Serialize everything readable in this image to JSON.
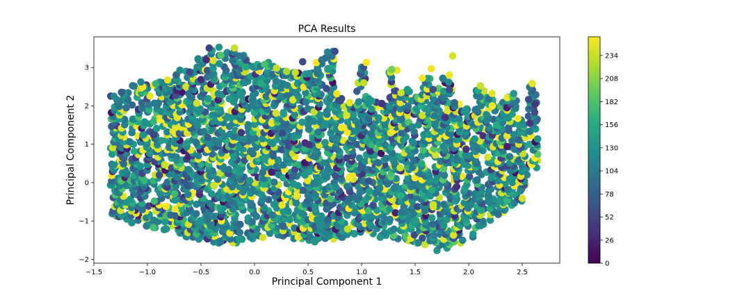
{
  "chart_data": {
    "type": "scatter",
    "title": "PCA Results",
    "xlabel": "Principal Component 1",
    "ylabel": "Principal Component 2",
    "xlim": [
      -1.5,
      2.85
    ],
    "ylim": [
      -2.1,
      3.8
    ],
    "xticks": [
      -1.5,
      -1.0,
      -0.5,
      0.0,
      0.5,
      1.0,
      1.5,
      2.0,
      2.5
    ],
    "xtick_labels": [
      "−1.5",
      "−1.0",
      "−0.5",
      "0.0",
      "0.5",
      "1.0",
      "1.5",
      "2.0",
      "2.5"
    ],
    "yticks": [
      -2,
      -1,
      0,
      1,
      2,
      3
    ],
    "ytick_labels": [
      "−2",
      "−1",
      "0",
      "1",
      "2",
      "3"
    ],
    "grid": false,
    "colorbar": {
      "colormap": "viridis",
      "range": [
        0,
        255
      ],
      "ticks": [
        0,
        26,
        52,
        78,
        104,
        130,
        156,
        182,
        208,
        234
      ],
      "tick_labels": [
        "0",
        "26",
        "52",
        "78",
        "104",
        "130",
        "156",
        "182",
        "208",
        "234"
      ]
    },
    "columns": [
      {
        "x": -1.3,
        "ymin": -0.9,
        "ymax": 2.25
      },
      {
        "x": -1.22,
        "ymin": -0.95,
        "ymax": 2.35
      },
      {
        "x": -1.12,
        "ymin": -1.05,
        "ymax": 2.5
      },
      {
        "x": -1.02,
        "ymin": -1.1,
        "ymax": 2.6
      },
      {
        "x": -0.9,
        "ymin": -1.15,
        "ymax": 2.6
      },
      {
        "x": -0.8,
        "ymin": -1.2,
        "ymax": 2.7
      },
      {
        "x": -0.7,
        "ymin": -1.3,
        "ymax": 2.9
      },
      {
        "x": -0.6,
        "ymin": -1.4,
        "ymax": 2.9
      },
      {
        "x": -0.5,
        "ymin": -1.5,
        "ymax": 3.2
      },
      {
        "x": -0.4,
        "ymin": -1.55,
        "ymax": 3.5
      },
      {
        "x": -0.3,
        "ymin": -1.6,
        "ymax": 3.5
      },
      {
        "x": -0.2,
        "ymin": -1.55,
        "ymax": 3.5
      },
      {
        "x": -0.1,
        "ymin": -1.5,
        "ymax": 3.3
      },
      {
        "x": 0.0,
        "ymin": -1.45,
        "ymax": 3.1
      },
      {
        "x": 0.1,
        "ymin": -1.4,
        "ymax": 3.1
      },
      {
        "x": 0.2,
        "ymin": -1.35,
        "ymax": 3.0
      },
      {
        "x": 0.3,
        "ymin": -1.4,
        "ymax": 2.9
      },
      {
        "x": 0.4,
        "ymin": -1.45,
        "ymax": 2.85
      },
      {
        "x": 0.5,
        "ymin": -1.5,
        "ymax": 2.85
      },
      {
        "x": 0.6,
        "ymin": -1.55,
        "ymax": 3.3
      },
      {
        "x": 0.7,
        "ymin": -1.45,
        "ymax": 3.4
      },
      {
        "x": 0.8,
        "ymin": -1.4,
        "ymax": 2.3
      },
      {
        "x": 0.9,
        "ymin": -1.35,
        "ymax": 2.1
      },
      {
        "x": 1.0,
        "ymin": -1.3,
        "ymax": 3.2
      },
      {
        "x": 1.1,
        "ymin": -1.3,
        "ymax": 2.2
      },
      {
        "x": 1.2,
        "ymin": -1.4,
        "ymax": 2.05
      },
      {
        "x": 1.3,
        "ymin": -1.45,
        "ymax": 2.9
      },
      {
        "x": 1.4,
        "ymin": -1.5,
        "ymax": 2.4
      },
      {
        "x": 1.5,
        "ymin": -1.55,
        "ymax": 2.2
      },
      {
        "x": 1.6,
        "ymin": -1.6,
        "ymax": 2.7
      },
      {
        "x": 1.7,
        "ymin": -1.75,
        "ymax": 2.45
      },
      {
        "x": 1.8,
        "ymin": -1.7,
        "ymax": 2.8
      },
      {
        "x": 1.9,
        "ymin": -1.6,
        "ymax": 2.1
      },
      {
        "x": 2.0,
        "ymin": -1.4,
        "ymax": 2.0
      },
      {
        "x": 2.1,
        "ymin": -1.2,
        "ymax": 2.5
      },
      {
        "x": 2.2,
        "ymin": -1.0,
        "ymax": 2.3
      },
      {
        "x": 2.3,
        "ymin": -0.8,
        "ymax": 2.1
      },
      {
        "x": 2.4,
        "ymin": -0.6,
        "ymax": 2.3
      },
      {
        "x": 2.5,
        "ymin": -0.5,
        "ymax": 1.7
      },
      {
        "x": 2.6,
        "ymin": 0.4,
        "ymax": 2.6
      }
    ],
    "highlights": [
      {
        "x": 0.75,
        "y": 3.42,
        "value": 60
      },
      {
        "x": 1.85,
        "y": 3.3,
        "value": 240
      },
      {
        "x": 1.28,
        "y": 2.95,
        "value": 200
      },
      {
        "x": 1.65,
        "y": 2.97,
        "value": 250
      },
      {
        "x": 1.02,
        "y": 2.6,
        "value": 230
      },
      {
        "x": 2.57,
        "y": 1.55,
        "value": 40
      },
      {
        "x": 2.62,
        "y": 2.05,
        "value": 40
      },
      {
        "x": 1.78,
        "y": 1.7,
        "value": 40
      },
      {
        "x": 1.82,
        "y": 2.42,
        "value": 60
      },
      {
        "x": 2.22,
        "y": 2.0,
        "value": 250
      },
      {
        "x": 0.45,
        "y": 3.15,
        "value": 60
      },
      {
        "x": -0.45,
        "y": 3.2,
        "value": 30
      },
      {
        "x": 0.3,
        "y": 2.9,
        "value": 220
      }
    ]
  }
}
